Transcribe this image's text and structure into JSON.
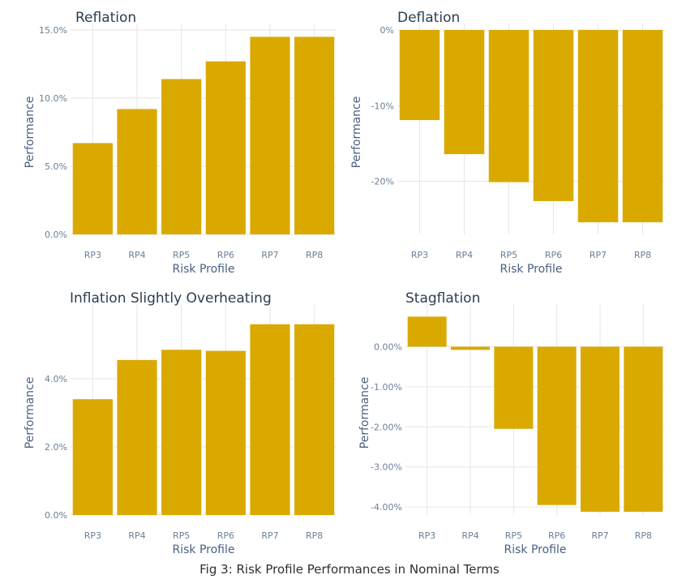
{
  "caption": "Fig 3: Risk Profile Performances in Nominal Terms",
  "colors": {
    "bar": "#DAA900",
    "grid": "#e6e6e6",
    "title": "#2c3e50",
    "axis_label": "#4a6080",
    "tick": "#6b7f96"
  },
  "chart_data": [
    {
      "type": "bar",
      "title": "Reflation",
      "xlabel": "Risk Profile",
      "ylabel": "Performance",
      "categories": [
        "RP3",
        "RP4",
        "RP5",
        "RP6",
        "RP7",
        "RP8"
      ],
      "values": [
        6.7,
        9.2,
        11.4,
        12.7,
        14.5,
        14.5
      ],
      "ylim": [
        0,
        15
      ],
      "yticks": [
        0,
        5,
        10,
        15
      ],
      "ytick_labels": [
        "0.0%",
        "5.0%",
        "10.0%",
        "15.0%"
      ],
      "grid": true
    },
    {
      "type": "bar",
      "title": "Deflation",
      "xlabel": "Risk Profile",
      "ylabel": "Performance",
      "categories": [
        "RP3",
        "RP4",
        "RP5",
        "RP6",
        "RP7",
        "RP8"
      ],
      "values": [
        -11.9,
        -16.4,
        -20.1,
        -22.6,
        -25.4,
        -25.4
      ],
      "ylim": [
        -27,
        0
      ],
      "yticks": [
        -20,
        -10,
        0
      ],
      "ytick_labels": [
        "-20%",
        "-10%",
        "0%"
      ],
      "grid": true
    },
    {
      "type": "bar",
      "title": "Inflation Slightly Overheating",
      "xlabel": "Risk Profile",
      "ylabel": "Performance",
      "categories": [
        "RP3",
        "RP4",
        "RP5",
        "RP6",
        "RP7",
        "RP8"
      ],
      "values": [
        3.4,
        4.55,
        4.85,
        4.82,
        5.6,
        5.6
      ],
      "ylim": [
        0,
        6
      ],
      "yticks": [
        0,
        2,
        4
      ],
      "ytick_labels": [
        "0.0%",
        "2.0%",
        "4.0%"
      ],
      "grid": true
    },
    {
      "type": "bar",
      "title": "Stagflation",
      "xlabel": "Risk Profile",
      "ylabel": "Performance",
      "categories": [
        "RP3",
        "RP4",
        "RP5",
        "RP6",
        "RP7",
        "RP8"
      ],
      "values": [
        0.75,
        -0.08,
        -2.05,
        -3.95,
        -4.12,
        -4.12
      ],
      "ylim": [
        -4.2,
        0.9
      ],
      "yticks": [
        -4,
        -3,
        -2,
        -1,
        0
      ],
      "ytick_labels": [
        "-4.00%",
        "-3.00%",
        "-2.00%",
        "-1.00%",
        "0.00%"
      ],
      "grid": true
    }
  ]
}
